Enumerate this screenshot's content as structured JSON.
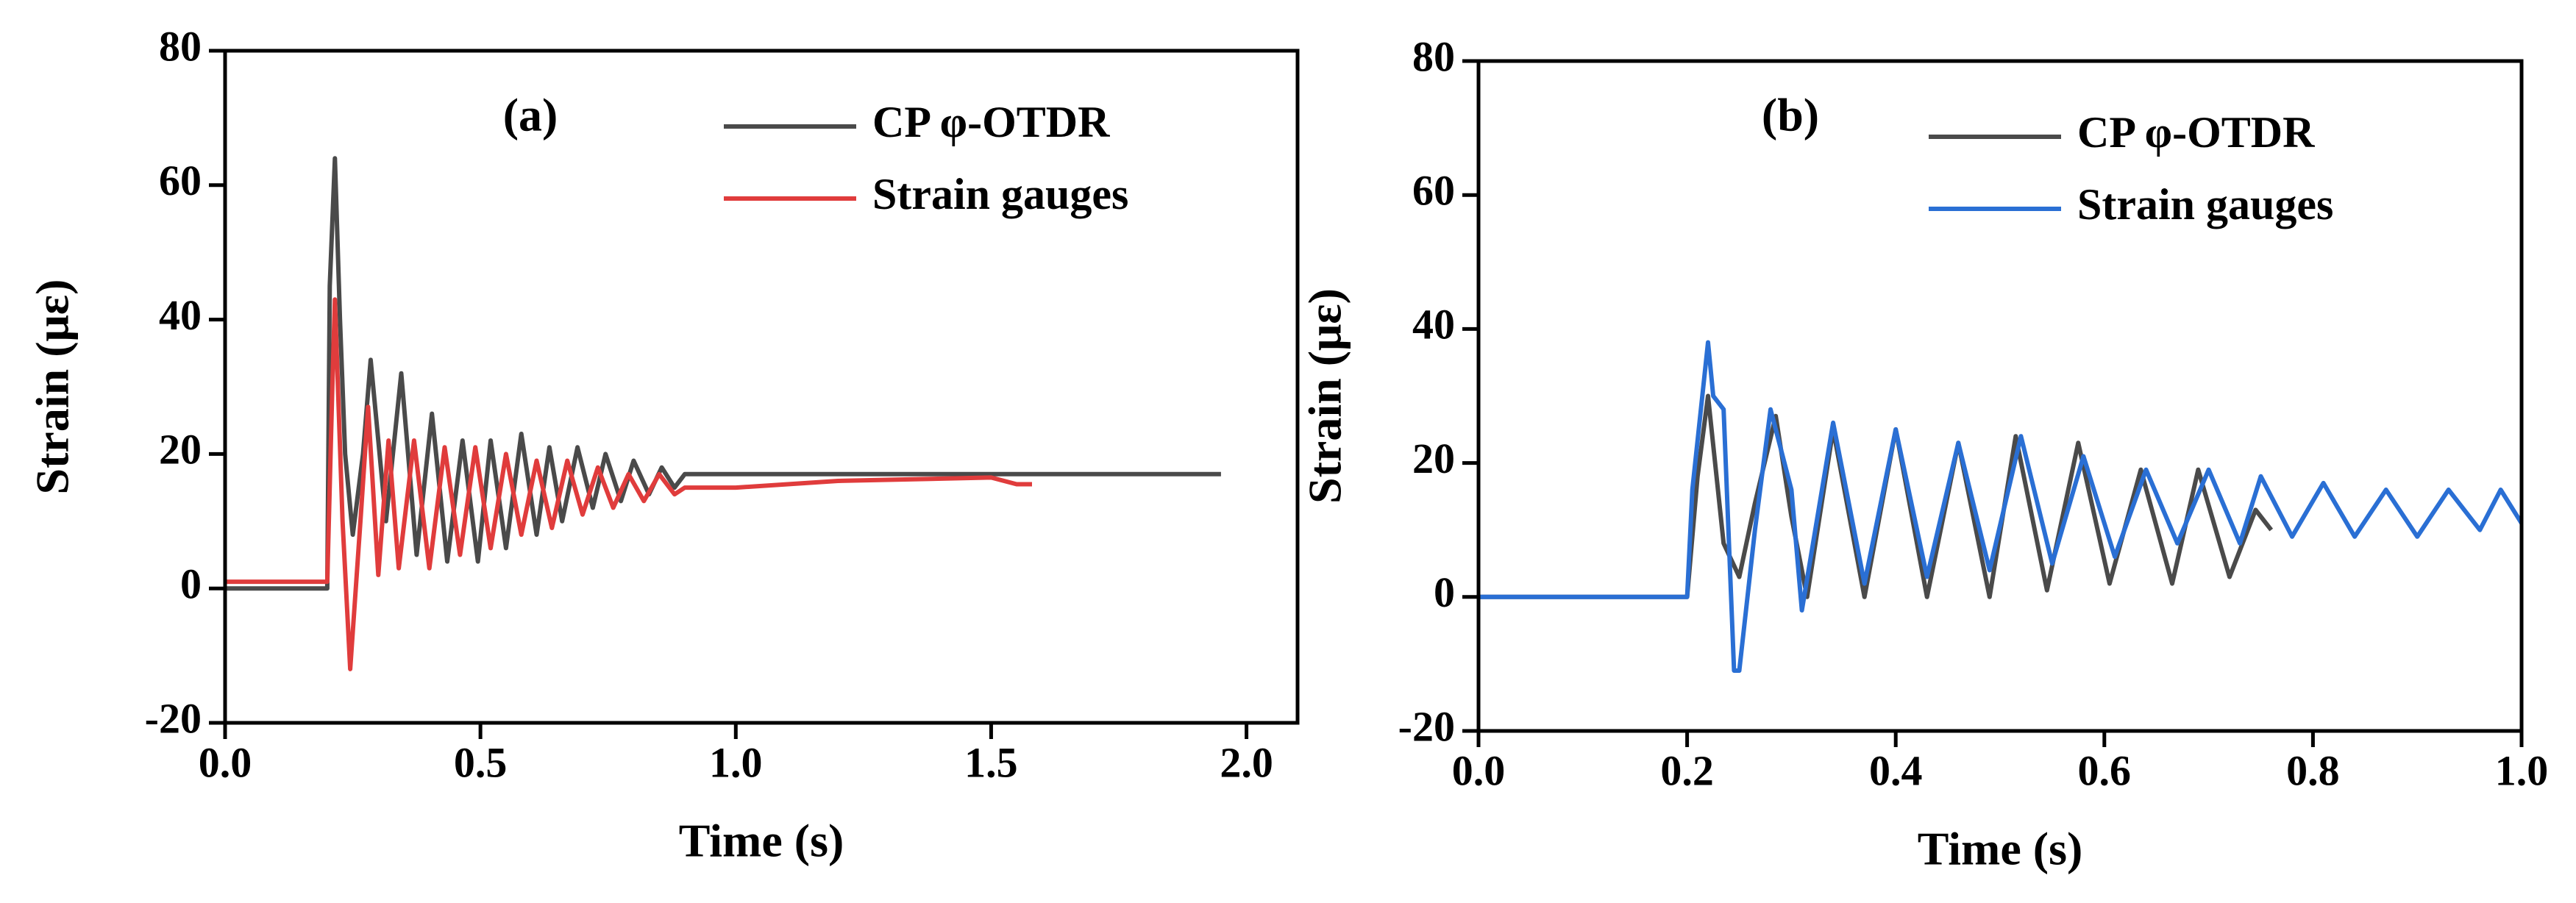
{
  "chart_data": [
    {
      "type": "line",
      "annotation": "(a)",
      "xlabel": "Time (s)",
      "ylabel": "Strain (με)",
      "xlim": [
        0,
        2.1
      ],
      "ylim": [
        -20,
        80
      ],
      "xticks": [
        {
          "value": 0,
          "label": "0.0"
        },
        {
          "value": 0.5,
          "label": "0.5"
        },
        {
          "value": 1,
          "label": "1.0"
        },
        {
          "value": 1.5,
          "label": "1.5"
        },
        {
          "value": 2,
          "label": "2.0"
        }
      ],
      "yticks": [
        -20,
        0,
        20,
        40,
        60,
        80
      ],
      "legend": "upper right",
      "series": [
        {
          "name": "CP φ-OTDR",
          "color": "#4a4a4a",
          "x": [
            0,
            0.2,
            0.205,
            0.215,
            0.225,
            0.235,
            0.25,
            0.27,
            0.285,
            0.315,
            0.345,
            0.375,
            0.405,
            0.435,
            0.465,
            0.495,
            0.52,
            0.55,
            0.58,
            0.61,
            0.635,
            0.66,
            0.69,
            0.72,
            0.745,
            0.775,
            0.8,
            0.83,
            0.855,
            0.88,
            0.9,
            1.95
          ],
          "values": [
            0,
            0,
            45,
            64,
            40,
            20,
            8,
            20,
            34,
            10,
            32,
            5,
            26,
            4,
            22,
            4,
            22,
            6,
            23,
            8,
            21,
            10,
            21,
            12,
            20,
            13,
            19,
            14,
            18,
            15,
            17,
            17
          ]
        },
        {
          "name": "Strain gauges",
          "color": "#e03c3c",
          "x": [
            0,
            0.2,
            0.21,
            0.215,
            0.23,
            0.245,
            0.265,
            0.28,
            0.3,
            0.32,
            0.34,
            0.37,
            0.4,
            0.43,
            0.46,
            0.49,
            0.52,
            0.55,
            0.58,
            0.61,
            0.64,
            0.67,
            0.7,
            0.73,
            0.76,
            0.79,
            0.82,
            0.85,
            0.88,
            0.9,
            1.0,
            1.2,
            1.5,
            1.55,
            1.58
          ],
          "values": [
            1,
            1,
            30,
            43,
            10,
            -12,
            10,
            27,
            2,
            22,
            3,
            22,
            3,
            21,
            5,
            21,
            6,
            20,
            8,
            19,
            9,
            19,
            11,
            18,
            12,
            17,
            13,
            17,
            14,
            15,
            15,
            16,
            16.5,
            15.5,
            15.5
          ]
        }
      ]
    },
    {
      "type": "line",
      "annotation": "(b)",
      "xlabel": "Time (s)",
      "ylabel": "Strain (με)",
      "xlim": [
        0,
        1
      ],
      "ylim": [
        -20,
        80
      ],
      "xticks": [
        {
          "value": 0,
          "label": "0.0"
        },
        {
          "value": 0.2,
          "label": "0.2"
        },
        {
          "value": 0.4,
          "label": "0.4"
        },
        {
          "value": 0.6,
          "label": "0.6"
        },
        {
          "value": 0.8,
          "label": "0.8"
        },
        {
          "value": 1,
          "label": "1.0"
        }
      ],
      "yticks": [
        -20,
        0,
        20,
        40,
        60,
        80
      ],
      "legend": "upper right",
      "series": [
        {
          "name": "CP φ-OTDR",
          "color": "#4a4a4a",
          "x": [
            0,
            0.2,
            0.21,
            0.22,
            0.235,
            0.25,
            0.265,
            0.285,
            0.3,
            0.315,
            0.34,
            0.37,
            0.4,
            0.43,
            0.46,
            0.49,
            0.515,
            0.545,
            0.575,
            0.605,
            0.635,
            0.665,
            0.69,
            0.72,
            0.745,
            0.76
          ],
          "values": [
            0,
            0,
            18,
            30,
            8,
            3,
            14,
            27,
            12,
            0,
            25,
            0,
            25,
            0,
            23,
            0,
            24,
            1,
            23,
            2,
            19,
            2,
            19,
            3,
            13,
            10
          ]
        },
        {
          "name": "Strain gauges",
          "color": "#2a6fd4",
          "x": [
            0,
            0.2,
            0.205,
            0.22,
            0.225,
            0.235,
            0.245,
            0.25,
            0.265,
            0.28,
            0.3,
            0.31,
            0.34,
            0.37,
            0.4,
            0.43,
            0.46,
            0.49,
            0.52,
            0.55,
            0.58,
            0.61,
            0.64,
            0.67,
            0.7,
            0.73,
            0.75,
            0.78,
            0.81,
            0.84,
            0.87,
            0.9,
            0.93,
            0.96,
            0.98,
            1.0
          ],
          "values": [
            0,
            0,
            16,
            38,
            30,
            28,
            -11,
            -11,
            10,
            28,
            16,
            -2,
            26,
            2,
            25,
            3,
            23,
            4,
            24,
            5,
            21,
            6,
            19,
            8,
            19,
            8,
            18,
            9,
            17,
            9,
            16,
            9,
            16,
            10,
            16,
            11
          ]
        }
      ]
    }
  ]
}
